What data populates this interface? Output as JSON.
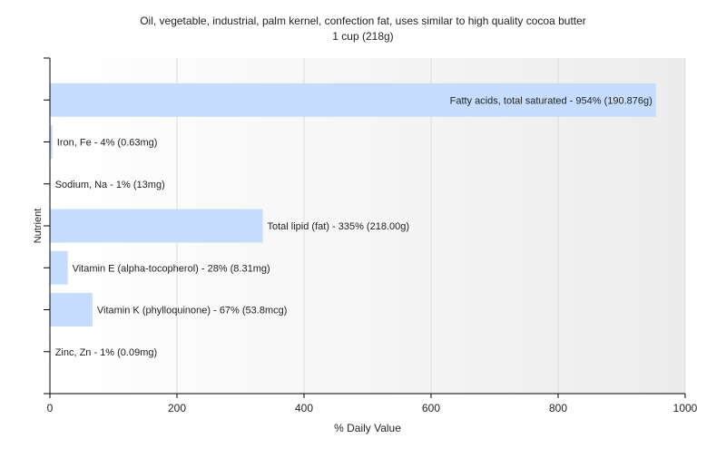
{
  "chart_data": {
    "type": "bar",
    "orientation": "horizontal",
    "title": "Oil, vegetable, industrial, palm kernel, confection fat, uses similar to high quality cocoa butter",
    "subtitle": "1 cup (218g)",
    "xlabel": "% Daily Value",
    "ylabel": "Nutrient",
    "xlim": [
      0,
      1000
    ],
    "xticks": [
      0,
      200,
      400,
      600,
      800,
      1000
    ],
    "grid": true,
    "categories": [
      "Fatty acids, total saturated",
      "Iron, Fe",
      "Sodium, Na",
      "Total lipid (fat)",
      "Vitamin E (alpha-tocopherol)",
      "Vitamin K (phylloquinone)",
      "Zinc, Zn"
    ],
    "values": [
      954,
      4,
      1,
      335,
      28,
      67,
      1
    ],
    "amounts": [
      "190.876g",
      "0.63mg",
      "13mg",
      "218.00g",
      "8.31mg",
      "53.8mcg",
      "0.09mg"
    ],
    "labels": [
      "Fatty acids, total saturated - 954% (190.876g)",
      "Iron, Fe - 4% (0.63mg)",
      "Sodium, Na - 1% (13mg)",
      "Total lipid (fat) - 335% (218.00g)",
      "Vitamin E (alpha-tocopherol) - 28% (8.31mg)",
      "Vitamin K (phylloquinone) - 67% (53.8mcg)",
      "Zinc, Zn - 1% (0.09mg)"
    ],
    "colors": {
      "bar": "#c6ddff",
      "grid": "#dddddd",
      "axis": "#000000",
      "plot_gradient_start": "#ffffff",
      "plot_gradient_end": "#ececec"
    }
  }
}
